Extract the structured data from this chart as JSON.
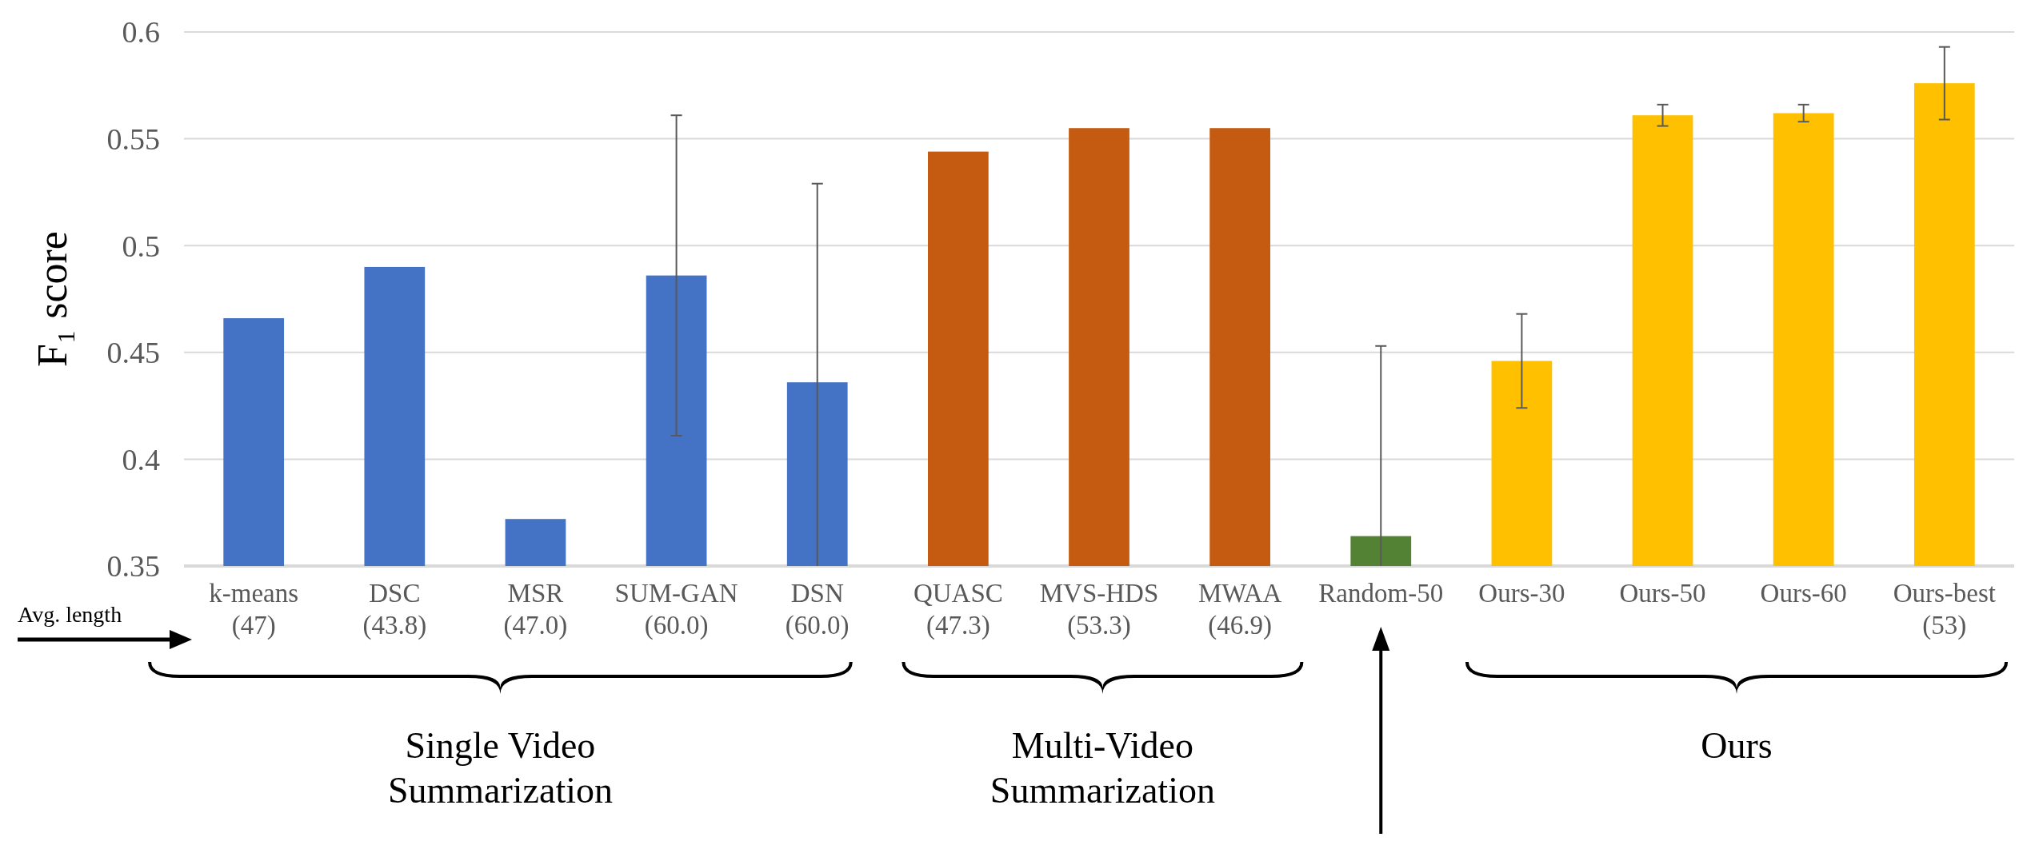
{
  "chart_data": {
    "type": "bar",
    "ylabel": "F₁ score",
    "categories": [
      "k-means\n(47)",
      "DSC\n(43.8)",
      "MSR\n(47.0)",
      "SUM-GAN\n(60.0)",
      "DSN\n(60.0)",
      "QUASC\n(47.3)",
      "MVS-HDS\n(53.3)",
      "MWAA\n(46.9)",
      "Random-50",
      "Ours-30",
      "Ours-50",
      "Ours-60",
      "Ours-best\n(53)"
    ],
    "values": [
      0.466,
      0.49,
      0.372,
      0.486,
      0.436,
      0.544,
      0.555,
      0.555,
      0.364,
      0.446,
      0.561,
      0.562,
      0.576
    ],
    "colors": [
      "#4472c4",
      "#4472c4",
      "#4472c4",
      "#4472c4",
      "#4472c4",
      "#c55a11",
      "#c55a11",
      "#c55a11",
      "#548235",
      "#ffc000",
      "#ffc000",
      "#ffc000",
      "#ffc000"
    ],
    "errors": [
      null,
      null,
      null,
      [
        0.411,
        0.561
      ],
      [
        0.35,
        0.529
      ],
      null,
      null,
      null,
      [
        0.35,
        0.453
      ],
      [
        0.424,
        0.468
      ],
      [
        0.556,
        0.566
      ],
      [
        0.558,
        0.566
      ],
      [
        0.559,
        0.593
      ]
    ],
    "ylim": [
      0.35,
      0.6
    ],
    "yticks": [
      0.35,
      0.4,
      0.45,
      0.5,
      0.55,
      0.6
    ],
    "grid": "y",
    "annotations": [
      "Avg. length",
      "Single Video Summarization",
      "Multi-Video Summarization",
      "Ours"
    ]
  }
}
